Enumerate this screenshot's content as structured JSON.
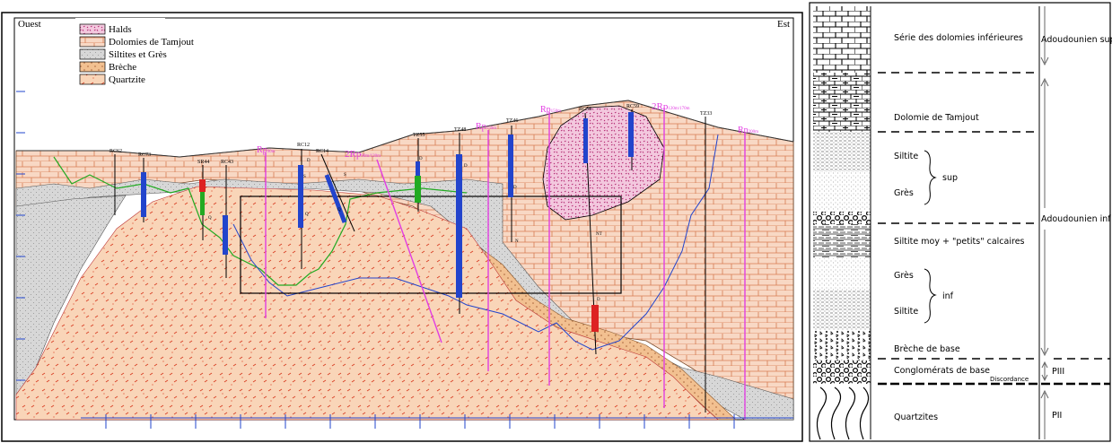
{
  "section": {
    "west_label": "Ouest",
    "east_label": "Est",
    "legend": [
      {
        "label": "Halds",
        "pattern": "halds"
      },
      {
        "label": "Dolomies de Tamjout",
        "pattern": "dolomie"
      },
      {
        "label": "Siltites et Grès",
        "pattern": "siltite"
      },
      {
        "label": "Brèche",
        "pattern": "breche"
      },
      {
        "label": "Quartzite",
        "pattern": "quartzite"
      }
    ],
    "drillholes": [
      {
        "name": "RC62"
      },
      {
        "name": "RC73"
      },
      {
        "name": "SR44"
      },
      {
        "name": "RC43"
      },
      {
        "name": "RC12"
      },
      {
        "name": "RC14"
      },
      {
        "name": "TZ55"
      },
      {
        "name": "TZ48"
      },
      {
        "name": "TZ46"
      },
      {
        "name": "RC58"
      },
      {
        "name": "RC59"
      },
      {
        "name": "TZ33"
      }
    ],
    "rp_labels": [
      {
        "main": "Rp",
        "sub": "90m"
      },
      {
        "main": "2Rp",
        "sub": "90m/120m"
      },
      {
        "main": "Rp",
        "sub": "150m"
      },
      {
        "main": "Rp",
        "sub": "150m"
      },
      {
        "main": "2Rp",
        "sub": "120m/170m"
      },
      {
        "main": "Rp",
        "sub": "200m"
      }
    ],
    "small_labels": [
      "Q",
      "Q",
      "D",
      "D",
      "D",
      "D",
      "S",
      "S",
      "N",
      "NT",
      "Q",
      "D"
    ]
  },
  "column": {
    "units": [
      {
        "label": "Série des dolomies inférieures",
        "pattern": "dolomie"
      },
      {
        "label": "Dolomie de Tamjout",
        "pattern": "dolomie2"
      },
      {
        "label": "Siltite",
        "pattern": "silt1"
      },
      {
        "label": "Grès",
        "pattern": "gres"
      },
      {
        "label": "Siltite moy + \"petits\" calcaires",
        "pattern": "calc"
      },
      {
        "label": "Grès",
        "pattern": "gres"
      },
      {
        "label": "Siltite",
        "pattern": "silt1"
      },
      {
        "label": "Brèche de base",
        "pattern": "brech"
      },
      {
        "label": "Conglomérats de base",
        "pattern": "congl"
      },
      {
        "label": "Quartzites",
        "pattern": "quartz"
      }
    ],
    "brace_sup": "sup",
    "brace_inf": "inf",
    "discordance": "Discordance",
    "ages": {
      "adoudounien_sup": "Adoudounien sup",
      "adoudounien_inf": "Adoudounien inf",
      "piii": "PIII",
      "pii": "PII"
    }
  }
}
